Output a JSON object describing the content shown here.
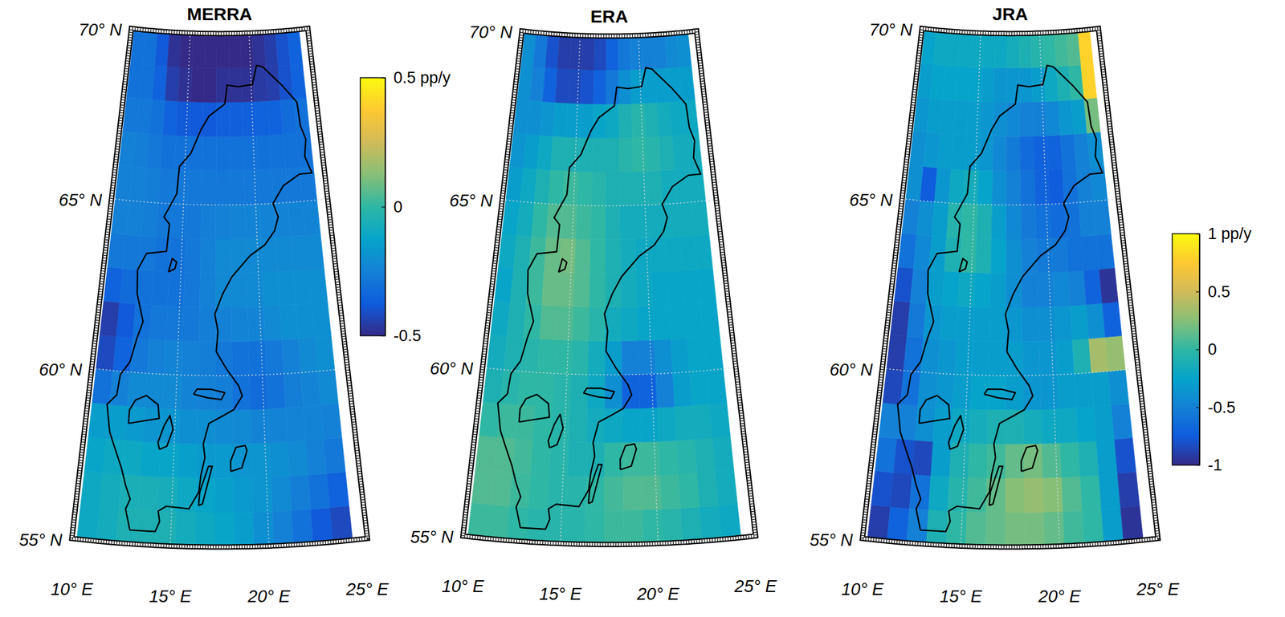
{
  "chart_data": [
    {
      "type": "heatmap",
      "title": "MERRA",
      "x": [
        10.75,
        11.75,
        12.75,
        13.75,
        14.75,
        15.75,
        16.75,
        17.75,
        18.75,
        19.75,
        20.75,
        21.75,
        22.75,
        23.75
      ],
      "y": [
        55.5,
        56.5,
        57.5,
        58.5,
        59.5,
        60.5,
        61.5,
        62.5,
        63.5,
        64.5,
        65.5,
        66.5,
        67.5,
        68.5,
        69.5
      ],
      "xlim": [
        10,
        25
      ],
      "ylim": [
        55,
        70
      ],
      "xticks": [
        {
          "value": 10,
          "label": "10° E"
        },
        {
          "value": 15,
          "label": "15° E"
        },
        {
          "value": 20,
          "label": "20° E"
        },
        {
          "value": 25,
          "label": "25° E"
        }
      ],
      "yticks": [
        {
          "value": 55,
          "label": "55° N"
        },
        {
          "value": 60,
          "label": "60° N"
        },
        {
          "value": 65,
          "label": "65° N"
        },
        {
          "value": 70,
          "label": "70° N"
        }
      ],
      "grid": true,
      "zlim": [
        -0.5,
        0.5
      ],
      "zticks": [
        -0.5,
        0,
        {
          "value": 0.5,
          "label": "0.5 pp/y"
        }
      ],
      "values": [
        [
          -0.1,
          -0.08,
          -0.05,
          -0.05,
          -0.05,
          -0.08,
          -0.1,
          -0.12,
          -0.15,
          -0.2,
          -0.25,
          -0.3,
          -0.38,
          -0.42
        ],
        [
          -0.1,
          -0.08,
          -0.06,
          -0.06,
          -0.07,
          -0.1,
          -0.12,
          -0.14,
          -0.16,
          -0.18,
          -0.22,
          -0.26,
          -0.3,
          -0.35
        ],
        [
          -0.12,
          -0.1,
          -0.1,
          -0.12,
          -0.12,
          -0.14,
          -0.16,
          -0.16,
          -0.18,
          -0.18,
          -0.2,
          -0.22,
          -0.25,
          -0.28
        ],
        [
          -0.15,
          -0.15,
          -0.16,
          -0.18,
          -0.18,
          -0.2,
          -0.2,
          -0.22,
          -0.22,
          -0.24,
          -0.24,
          -0.24,
          -0.24,
          -0.25
        ],
        [
          -0.3,
          -0.25,
          -0.22,
          -0.22,
          -0.22,
          -0.24,
          -0.25,
          -0.26,
          -0.3,
          -0.32,
          -0.3,
          -0.26,
          -0.24,
          -0.22
        ],
        [
          -0.42,
          -0.35,
          -0.28,
          -0.25,
          -0.24,
          -0.25,
          -0.26,
          -0.28,
          -0.3,
          -0.3,
          -0.28,
          -0.25,
          -0.22,
          -0.2
        ],
        [
          -0.45,
          -0.38,
          -0.3,
          -0.28,
          -0.28,
          -0.28,
          -0.26,
          -0.25,
          -0.24,
          -0.24,
          -0.22,
          -0.2,
          -0.2,
          -0.2
        ],
        [
          -0.35,
          -0.32,
          -0.3,
          -0.3,
          -0.3,
          -0.28,
          -0.25,
          -0.22,
          -0.22,
          -0.22,
          -0.2,
          -0.2,
          -0.2,
          -0.2
        ],
        [
          -0.28,
          -0.28,
          -0.28,
          -0.3,
          -0.3,
          -0.28,
          -0.25,
          -0.22,
          -0.22,
          -0.22,
          -0.22,
          -0.22,
          -0.22,
          -0.22
        ],
        [
          -0.25,
          -0.25,
          -0.26,
          -0.28,
          -0.28,
          -0.28,
          -0.26,
          -0.25,
          -0.24,
          -0.24,
          -0.24,
          -0.24,
          -0.24,
          -0.24
        ],
        [
          -0.25,
          -0.25,
          -0.26,
          -0.28,
          -0.28,
          -0.28,
          -0.28,
          -0.28,
          -0.28,
          -0.28,
          -0.28,
          -0.28,
          -0.28,
          -0.28
        ],
        [
          -0.25,
          -0.26,
          -0.28,
          -0.3,
          -0.3,
          -0.3,
          -0.3,
          -0.3,
          -0.3,
          -0.3,
          -0.3,
          -0.3,
          -0.3,
          -0.3
        ],
        [
          -0.28,
          -0.28,
          -0.3,
          -0.35,
          -0.38,
          -0.38,
          -0.38,
          -0.36,
          -0.36,
          -0.36,
          -0.35,
          -0.35,
          -0.32,
          -0.3
        ],
        [
          -0.3,
          -0.3,
          -0.35,
          -0.45,
          -0.48,
          -0.5,
          -0.5,
          -0.48,
          -0.48,
          -0.48,
          -0.46,
          -0.45,
          -0.4,
          -0.35
        ],
        [
          -0.3,
          -0.3,
          -0.38,
          -0.48,
          -0.5,
          -0.5,
          -0.5,
          -0.5,
          -0.5,
          -0.5,
          -0.48,
          -0.45,
          -0.4,
          -0.35
        ]
      ]
    },
    {
      "type": "heatmap",
      "title": "ERA",
      "x": [
        10.75,
        11.75,
        12.75,
        13.75,
        14.75,
        15.75,
        16.75,
        17.75,
        18.75,
        19.75,
        20.75,
        21.75,
        22.75,
        23.75
      ],
      "y": [
        55.5,
        56.5,
        57.5,
        58.5,
        59.5,
        60.5,
        61.5,
        62.5,
        63.5,
        64.5,
        65.5,
        66.5,
        67.5,
        68.5,
        69.5
      ],
      "xlim": [
        10,
        25
      ],
      "ylim": [
        55,
        70
      ],
      "xticks": [
        {
          "value": 10,
          "label": "10° E"
        },
        {
          "value": 15,
          "label": "15° E"
        },
        {
          "value": 20,
          "label": "20° E"
        },
        {
          "value": 25,
          "label": "25° E"
        }
      ],
      "yticks": [
        {
          "value": 55,
          "label": "55° N"
        },
        {
          "value": 60,
          "label": "60° N"
        },
        {
          "value": 65,
          "label": "65° N"
        },
        {
          "value": 70,
          "label": "70° N"
        }
      ],
      "grid": true,
      "zlim": [
        -0.5,
        0.5
      ],
      "values": [
        [
          0.02,
          0.02,
          0,
          -0.02,
          -0.02,
          -0.02,
          0,
          0.02,
          0.02,
          0,
          -0.02,
          -0.05,
          -0.08,
          -0.1
        ],
        [
          0.05,
          0.05,
          0.02,
          0,
          -0.02,
          -0.02,
          0,
          0.03,
          0.05,
          0.05,
          0.02,
          0,
          -0.05,
          -0.08
        ],
        [
          0.05,
          0.05,
          0.03,
          0,
          -0.02,
          -0.05,
          -0.05,
          0,
          0.02,
          0.02,
          0,
          -0.02,
          -0.05,
          -0.08
        ],
        [
          0,
          0.02,
          0.02,
          0,
          -0.02,
          -0.05,
          -0.08,
          -0.1,
          -0.12,
          -0.12,
          -0.1,
          -0.08,
          -0.08,
          -0.1
        ],
        [
          -0.05,
          -0.02,
          0,
          0,
          -0.02,
          -0.05,
          -0.1,
          -0.2,
          -0.35,
          -0.35,
          -0.25,
          -0.15,
          -0.12,
          -0.12
        ],
        [
          -0.08,
          -0.05,
          -0.02,
          0,
          0,
          -0.02,
          -0.08,
          -0.15,
          -0.25,
          -0.25,
          -0.2,
          -0.15,
          -0.12,
          -0.12
        ],
        [
          -0.1,
          -0.05,
          0,
          0.05,
          0.05,
          0.02,
          -0.02,
          -0.08,
          -0.1,
          -0.12,
          -0.12,
          -0.12,
          -0.12,
          -0.12
        ],
        [
          -0.12,
          -0.05,
          0.02,
          0.08,
          0.08,
          0.05,
          0,
          -0.05,
          -0.08,
          -0.1,
          -0.12,
          -0.12,
          -0.12,
          -0.12
        ],
        [
          -0.1,
          -0.05,
          0.02,
          0.08,
          0.1,
          0.05,
          0,
          -0.05,
          -0.08,
          -0.1,
          -0.1,
          -0.1,
          -0.1,
          -0.1
        ],
        [
          -0.12,
          -0.08,
          0,
          0.05,
          0.05,
          0.02,
          0,
          -0.05,
          -0.08,
          -0.08,
          -0.08,
          -0.08,
          -0.08,
          -0.08
        ],
        [
          -0.15,
          -0.1,
          -0.05,
          0,
          0.02,
          0,
          -0.02,
          -0.05,
          -0.05,
          -0.05,
          -0.05,
          -0.08,
          -0.08,
          -0.08
        ],
        [
          -0.18,
          -0.15,
          -0.1,
          -0.05,
          -0.05,
          -0.05,
          -0.05,
          -0.05,
          -0.02,
          0,
          -0.02,
          -0.05,
          -0.08,
          -0.08
        ],
        [
          -0.2,
          -0.2,
          -0.18,
          -0.15,
          -0.15,
          -0.15,
          -0.12,
          -0.1,
          -0.05,
          -0.02,
          -0.05,
          -0.08,
          -0.1,
          -0.1
        ],
        [
          -0.2,
          -0.25,
          -0.35,
          -0.42,
          -0.42,
          -0.4,
          -0.35,
          -0.28,
          -0.2,
          -0.15,
          -0.15,
          -0.15,
          -0.15,
          -0.15
        ],
        [
          -0.2,
          -0.28,
          -0.4,
          -0.45,
          -0.45,
          -0.45,
          -0.42,
          -0.35,
          -0.28,
          -0.25,
          -0.25,
          -0.25,
          -0.22,
          -0.2
        ]
      ]
    },
    {
      "type": "heatmap",
      "title": "JRA",
      "x": [
        10.75,
        11.75,
        12.75,
        13.75,
        14.75,
        15.75,
        16.75,
        17.75,
        18.75,
        19.75,
        20.75,
        21.75,
        22.75,
        23.75
      ],
      "y": [
        55.5,
        56.5,
        57.5,
        58.5,
        59.5,
        60.5,
        61.5,
        62.5,
        63.5,
        64.5,
        65.5,
        66.5,
        67.5,
        68.5,
        69.5
      ],
      "xlim": [
        10,
        25
      ],
      "ylim": [
        55,
        70
      ],
      "xticks": [
        {
          "value": 10,
          "label": "10° E"
        },
        {
          "value": 15,
          "label": "15° E"
        },
        {
          "value": 20,
          "label": "20° E"
        },
        {
          "value": 25,
          "label": "25° E"
        }
      ],
      "yticks": [
        {
          "value": 55,
          "label": "55° N"
        },
        {
          "value": 60,
          "label": "60° N"
        },
        {
          "value": 65,
          "label": "65° N"
        },
        {
          "value": 70,
          "label": "70° N"
        }
      ],
      "grid": true,
      "zlim": [
        -1,
        1
      ],
      "zticks": [
        -1,
        -0.5,
        0,
        0.5,
        {
          "value": 1,
          "label": "1 pp/y"
        }
      ],
      "values": [
        [
          -0.9,
          -0.7,
          -0.5,
          -0.1,
          0,
          0.1,
          0.15,
          0.2,
          0.2,
          0.15,
          0.05,
          0,
          -0.3,
          -0.95
        ],
        [
          -0.8,
          -0.85,
          -0.6,
          -0.2,
          -0.05,
          0.05,
          0.15,
          0.25,
          0.3,
          0.25,
          0.1,
          0,
          -0.3,
          -0.9
        ],
        [
          -0.6,
          -0.8,
          -0.85,
          -0.3,
          -0.1,
          0,
          0.05,
          0.15,
          0.2,
          0.1,
          0,
          -0.1,
          -0.3,
          -0.8
        ],
        [
          -0.5,
          -0.5,
          -0.4,
          -0.3,
          -0.2,
          -0.15,
          -0.1,
          -0.1,
          -0.15,
          -0.2,
          -0.2,
          -0.25,
          -0.3,
          -0.5
        ],
        [
          -0.85,
          -0.6,
          -0.4,
          -0.35,
          -0.3,
          -0.25,
          -0.25,
          -0.3,
          -0.35,
          -0.35,
          -0.3,
          -0.3,
          -0.3,
          -0.4
        ],
        [
          -0.9,
          -0.6,
          -0.4,
          -0.35,
          -0.3,
          -0.3,
          -0.3,
          -0.3,
          -0.35,
          -0.35,
          -0.3,
          -0.1,
          0.35,
          0.3
        ],
        [
          -0.9,
          -0.55,
          -0.35,
          -0.3,
          -0.3,
          -0.3,
          -0.3,
          -0.35,
          -0.4,
          -0.4,
          -0.35,
          -0.3,
          -0.4,
          -0.7
        ],
        [
          -0.8,
          -0.5,
          -0.3,
          -0.25,
          -0.2,
          -0.25,
          -0.3,
          -0.4,
          -0.5,
          -0.5,
          -0.45,
          -0.5,
          -0.7,
          -0.95
        ],
        [
          -0.6,
          -0.45,
          -0.3,
          -0.1,
          0,
          -0.1,
          -0.25,
          -0.4,
          -0.5,
          -0.55,
          -0.55,
          -0.6,
          -0.6,
          -0.6
        ],
        [
          -0.5,
          -0.4,
          -0.3,
          -0.05,
          0,
          -0.1,
          -0.3,
          -0.45,
          -0.55,
          -0.6,
          -0.65,
          -0.6,
          -0.5,
          -0.5
        ],
        [
          -0.4,
          -0.75,
          -0.35,
          -0.2,
          -0.15,
          -0.25,
          -0.4,
          -0.5,
          -0.6,
          -0.7,
          -0.75,
          -0.6,
          -0.5,
          -0.45
        ],
        [
          -0.4,
          -0.35,
          -0.3,
          -0.3,
          -0.3,
          -0.35,
          -0.45,
          -0.55,
          -0.65,
          -0.7,
          -0.7,
          -0.6,
          -0.5,
          -0.4
        ],
        [
          -0.35,
          -0.3,
          -0.3,
          -0.3,
          -0.3,
          -0.35,
          -0.4,
          -0.45,
          -0.5,
          -0.5,
          -0.45,
          -0.35,
          -0.3,
          0.2
        ],
        [
          -0.3,
          -0.25,
          -0.25,
          -0.25,
          -0.25,
          -0.3,
          -0.35,
          -0.35,
          -0.35,
          -0.3,
          -0.2,
          -0.1,
          0,
          0.8
        ],
        [
          -0.25,
          -0.2,
          -0.2,
          -0.2,
          -0.2,
          -0.2,
          -0.2,
          -0.15,
          -0.1,
          -0.05,
          0,
          0.05,
          0.1,
          0.8
        ]
      ]
    }
  ]
}
